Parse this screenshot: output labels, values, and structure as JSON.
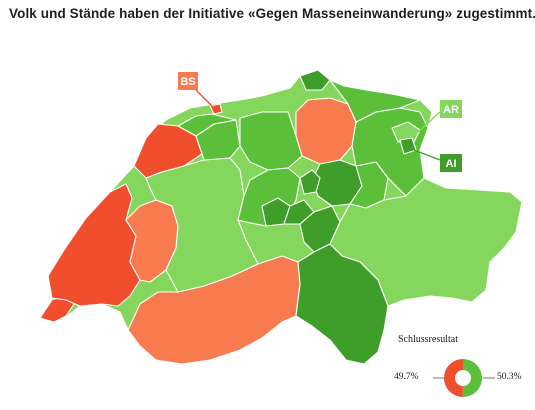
{
  "headline": "Volk und Stände haben der Initiative «Gegen Masseneinwanderung» zugestimmt.",
  "colors": {
    "yes_light": "#85d65c",
    "yes_mid": "#5cbf3a",
    "yes_dark": "#3f9e2a",
    "no_strong": "#f04e2c",
    "no_light": "#f77b4f",
    "background": "#ffffff"
  },
  "canton_tags": {
    "bs": "BS",
    "ar": "AR",
    "ai": "AI"
  },
  "result": {
    "title": "Schlussresultat",
    "no_label": "49.7%",
    "yes_label": "50.3%",
    "no_percent": 49.7,
    "yes_percent": 50.3
  }
}
